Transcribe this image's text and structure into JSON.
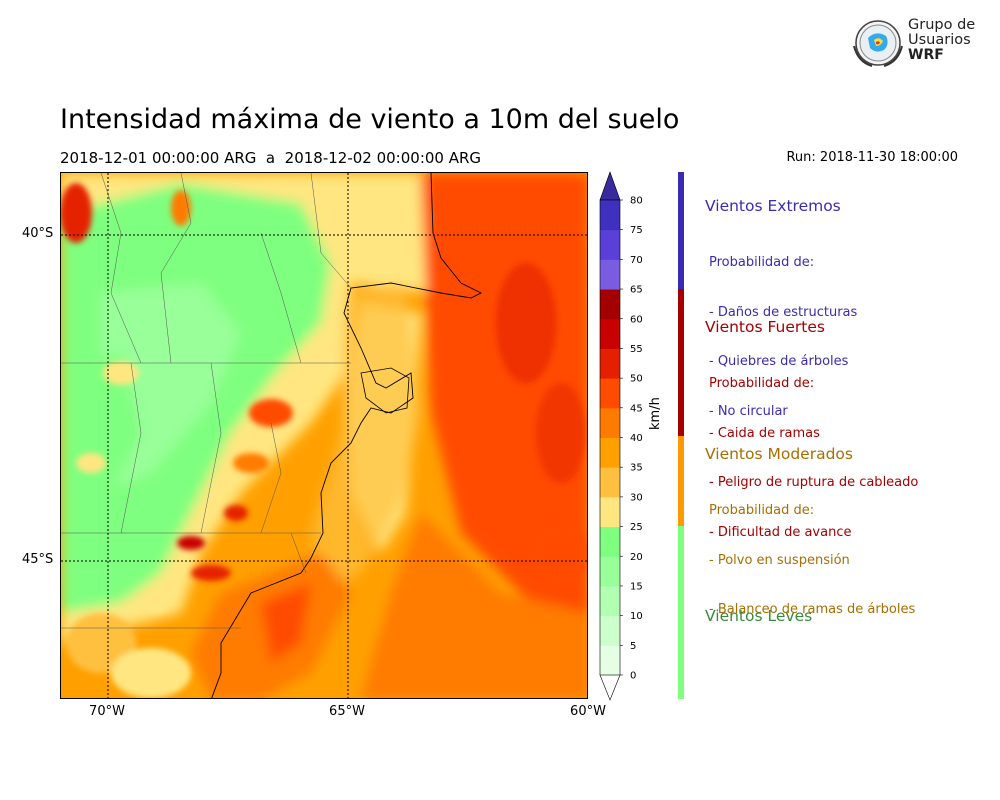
{
  "header": {
    "title": "Intensidad máxima de viento a 10m del suelo",
    "period": "2018-12-01 00:00:00 ARG  a  2018-12-02 00:00:00 ARG",
    "run": "Run: 2018-11-30 18:00:00"
  },
  "logo": {
    "line1": "Grupo de",
    "line2": "Usuarios",
    "line3": "WRF"
  },
  "map": {
    "lat_labels": [
      "40°S",
      "45°S"
    ],
    "lon_labels": [
      "70°W",
      "65°W",
      "60°W"
    ],
    "extent": {
      "lon": [
        -71,
        -60
      ],
      "lat": [
        -48.0,
        -39.0
      ]
    },
    "grid": true
  },
  "colorbar": {
    "units": "km/h",
    "ticks": [
      0,
      5,
      10,
      15,
      20,
      25,
      30,
      35,
      40,
      45,
      50,
      55,
      60,
      65,
      70,
      75,
      80
    ],
    "colors": [
      "#e5ffe5",
      "#ccffcc",
      "#b2ffb2",
      "#99ff99",
      "#7fff7f",
      "#ffe680",
      "#ffc040",
      "#ffa000",
      "#ff7b00",
      "#ff4c00",
      "#e52000",
      "#c80000",
      "#a50000",
      "#7a5ce0",
      "#5a40d8",
      "#4030c0"
    ],
    "extend": "both"
  },
  "categories": [
    {
      "title": "Vientos Extremos",
      "color": "#3b2bb3",
      "lines": [
        "Probabilidad de:",
        "- Daños de estructuras",
        "- Quiebres de árboles",
        "- No circular"
      ]
    },
    {
      "title": "Vientos Fuertes",
      "color": "#a50000",
      "lines": [
        "Probabilidad de:",
        "- Caida de ramas",
        "- Peligro de ruptura de cableado",
        "- Dificultad de avance"
      ]
    },
    {
      "title": "Vientos Moderados",
      "color": "#a86e00",
      "lines": [
        "Probabilidad de:",
        "- Polvo en suspensión",
        "- Balanceo de ramas de árboles"
      ]
    },
    {
      "title": "Vientos Leves",
      "color": "#3a8a3a",
      "lines": []
    }
  ],
  "riskbar_colors": [
    "#3b2bb3",
    "#a50000",
    "#ff9900",
    "#7fff7f"
  ]
}
